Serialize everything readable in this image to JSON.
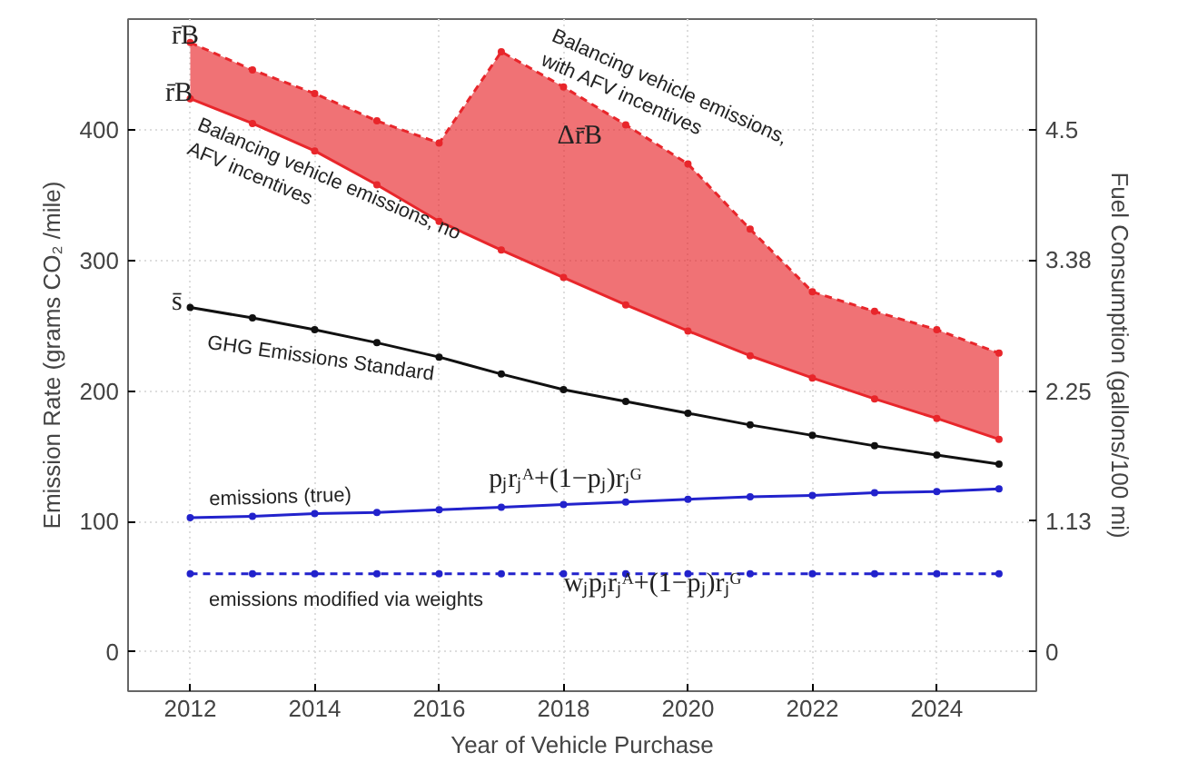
{
  "chart_data": {
    "type": "line",
    "xlabel": "Year of Vehicle Purchase",
    "ylabel": "Emission Rate (grams CO₂ /mile)",
    "y2label": "Fuel Consumption (gallons/100 mi)",
    "x": [
      2012,
      2013,
      2014,
      2015,
      2016,
      2017,
      2018,
      2019,
      2020,
      2021,
      2022,
      2023,
      2024,
      2025
    ],
    "series": [
      {
        "color": "#e8262b",
        "line_style": "dashed",
        "values": [
          467,
          446,
          428,
          407,
          390,
          460,
          433,
          404,
          374,
          324,
          276,
          261,
          247,
          229
        ],
        "lower": [
          424,
          405,
          384,
          358,
          330,
          308,
          287,
          266,
          246,
          227,
          210,
          194,
          179,
          163
        ],
        "upper": [
          467,
          446,
          428,
          407,
          390,
          460,
          433,
          404,
          374,
          324,
          276,
          261,
          247,
          229
        ]
      },
      {
        "color": "#e8262b",
        "line_style": "solid",
        "values": [
          424,
          405,
          384,
          358,
          330,
          308,
          287,
          266,
          246,
          227,
          210,
          194,
          179,
          163
        ]
      },
      {
        "color": "#111111",
        "line_style": "solid",
        "values": [
          264,
          256,
          247,
          237,
          226,
          213,
          201,
          192,
          183,
          174,
          166,
          158,
          151,
          144
        ]
      },
      {
        "color": "#2222cc",
        "line_style": "solid",
        "values": [
          103,
          104,
          106,
          107,
          109,
          111,
          113,
          115,
          117,
          119,
          120,
          122,
          123,
          125
        ]
      },
      {
        "color": "#2222cc",
        "line_style": "dashed",
        "values": [
          60,
          60,
          60,
          60,
          60,
          60,
          60,
          60,
          60,
          60,
          60,
          60,
          60,
          60
        ]
      }
    ],
    "marker": "circle",
    "grid": true,
    "xlim": [
      2011,
      2025.6
    ],
    "xticks": [
      2012,
      2014,
      2016,
      2018,
      2020,
      2022,
      2024
    ],
    "ylim": [
      -30,
      485
    ],
    "yticks": [
      0,
      100,
      200,
      300,
      400
    ],
    "y2lim": [
      -0.3375,
      5.456
    ],
    "y2ticks": [
      0,
      1.13,
      2.25,
      3.38,
      4.5
    ],
    "annotations": [
      "r̄B",
      "r̄B",
      "s̄",
      "Balancing vehicle emissions, no\nAFV incentives",
      "Balancing vehicle emissions,\nwith AFV incentives",
      "Δr̄B",
      "GHG Emissions Standard",
      "emissions (true)",
      "pⱼrⱼᴬ+(1−pⱼ)rⱼᴳ",
      "emissions modified via weights",
      "wⱼpⱼrⱼᴬ+(1−pⱼ)rⱼᴳ"
    ]
  }
}
